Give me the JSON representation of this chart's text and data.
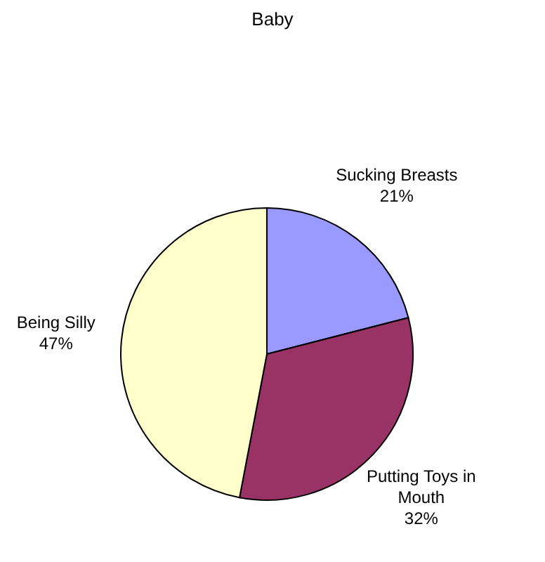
{
  "chart_data": {
    "type": "pie",
    "title": "Baby",
    "categories": [
      "Sucking Breasts",
      "Putting Toys in Mouth",
      "Being Silly"
    ],
    "values": [
      21,
      32,
      47
    ],
    "colors": [
      "#9999ff",
      "#993366",
      "#ffffcc"
    ],
    "value_labels": [
      "21%",
      "32%",
      "47%"
    ]
  }
}
